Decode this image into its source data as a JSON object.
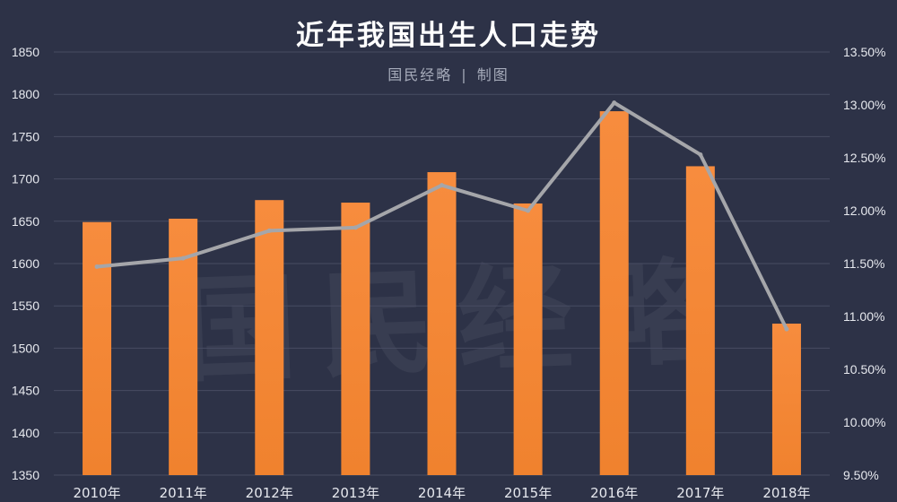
{
  "title": "近年我国出生人口走势",
  "subtitle": {
    "left": "国民经略",
    "separator": "|",
    "right": "制图"
  },
  "watermark": "国民经略",
  "chart_data": {
    "type": "bar",
    "categories": [
      "2010年",
      "2011年",
      "2012年",
      "2013年",
      "2014年",
      "2015年",
      "2016年",
      "2017年",
      "2018年"
    ],
    "series": [
      {
        "chart_type": "bar",
        "axis": "left",
        "color": "#f0822e",
        "values": [
          1649,
          1653,
          1675,
          1672,
          1708,
          1671,
          1780,
          1715,
          1529
        ]
      },
      {
        "chart_type": "line",
        "axis": "right",
        "color": "#a5a6aa",
        "values": [
          11.47,
          11.55,
          11.81,
          11.84,
          12.24,
          12.0,
          13.02,
          12.53,
          10.88
        ]
      }
    ],
    "y_left": {
      "ylim": [
        1350,
        1850
      ],
      "ticks": [
        "1350",
        "1400",
        "1450",
        "1500",
        "1550",
        "1600",
        "1650",
        "1700",
        "1750",
        "1800",
        "1850"
      ]
    },
    "y_right": {
      "ylim": [
        9.5,
        13.5
      ],
      "ticks": [
        "9.50%",
        "10.00%",
        "10.50%",
        "11.00%",
        "11.50%",
        "12.00%",
        "12.50%",
        "13.00%",
        "13.50%"
      ]
    },
    "grid": true,
    "legend": "none"
  },
  "colors": {
    "background": "#2d3247",
    "bar": "#f0822e",
    "line": "#a5a6aa",
    "grid": "#474c62",
    "tick_label": "#e6e8ee"
  }
}
